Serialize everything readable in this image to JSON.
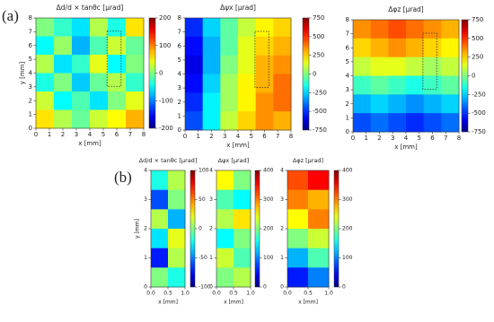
{
  "panel_labels": [
    "(a)",
    "(b)"
  ],
  "chart_data": [
    {
      "type": "heatmap",
      "title": "Δd/d × tanθc [μrad]",
      "xlabel": "x [mm]",
      "ylabel": "y [mm]",
      "colormap": "jet",
      "xlim": [
        0,
        8
      ],
      "ylim": [
        0,
        8
      ],
      "xticks": [
        0,
        1,
        2,
        3,
        4,
        5,
        6,
        7,
        8
      ],
      "yticks": [
        0,
        1,
        2,
        3,
        4,
        5,
        6,
        7,
        8
      ],
      "zlim": [
        -200,
        200
      ],
      "zticks": [
        200,
        100,
        0,
        -100,
        -200
      ],
      "z": [
        [
          0,
          -30,
          -60,
          20,
          -40,
          60
        ],
        [
          -50,
          10,
          -80,
          -20,
          30,
          -10
        ],
        [
          20,
          -60,
          -30,
          40,
          -50,
          0
        ],
        [
          -40,
          0,
          -70,
          -10,
          20,
          -30
        ],
        [
          30,
          -50,
          -20,
          -60,
          0,
          40
        ],
        [
          60,
          20,
          -10,
          30,
          50,
          80
        ]
      ]
    },
    {
      "type": "heatmap",
      "title": "Δψx [μrad]",
      "xlabel": "x [mm]",
      "colormap": "jet",
      "xlim": [
        0,
        8
      ],
      "ylim": [
        0,
        8
      ],
      "xticks": [
        0,
        1,
        2,
        3,
        4,
        5,
        6,
        7,
        8
      ],
      "yticks": [
        0,
        1,
        2,
        3,
        4,
        5,
        6,
        7,
        8
      ],
      "zlim": [
        -750,
        750
      ],
      "zticks": [
        750,
        500,
        250,
        0,
        -250,
        -500,
        -750
      ],
      "z": [
        [
          -500,
          -250,
          -50,
          100,
          200,
          250
        ],
        [
          -550,
          -300,
          -50,
          150,
          250,
          300
        ],
        [
          -600,
          -300,
          0,
          150,
          300,
          350
        ],
        [
          -550,
          -250,
          50,
          200,
          300,
          400
        ],
        [
          -500,
          -200,
          50,
          200,
          350,
          400
        ],
        [
          -450,
          -200,
          100,
          250,
          350,
          300
        ]
      ]
    },
    {
      "type": "heatmap",
      "title": "Δφz [μrad]",
      "xlabel": "x [mm]",
      "colormap": "jet",
      "xlim": [
        0,
        8
      ],
      "ylim": [
        0,
        8
      ],
      "xticks": [
        0,
        1,
        2,
        3,
        4,
        5,
        6,
        7,
        8
      ],
      "yticks": [
        0,
        1,
        2,
        3,
        4,
        5,
        6,
        7,
        8
      ],
      "zlim": [
        -750,
        750
      ],
      "zticks": [
        750,
        500,
        250,
        0,
        -250,
        -500,
        -750
      ],
      "z": [
        [
          350,
          400,
          450,
          400,
          350,
          300
        ],
        [
          250,
          300,
          350,
          300,
          250,
          200
        ],
        [
          100,
          150,
          150,
          100,
          50,
          100
        ],
        [
          -100,
          -50,
          -100,
          -150,
          -100,
          -50
        ],
        [
          -300,
          -250,
          -300,
          -350,
          -300,
          -250
        ],
        [
          -450,
          -400,
          -450,
          -500,
          -450,
          -400
        ]
      ]
    },
    {
      "type": "heatmap",
      "title": "Δd/d × tanθc [μrad]",
      "xlabel": "x [mm]",
      "ylabel": "y [mm]",
      "colormap": "jet",
      "xlim": [
        0,
        1
      ],
      "ylim": [
        0,
        4
      ],
      "xticks": [
        {
          "value": 0,
          "label": "0.0"
        },
        0.5,
        {
          "value": 1,
          "label": "1.0"
        }
      ],
      "yticks": [
        0,
        1,
        2,
        3,
        4
      ],
      "zlim": [
        -100,
        100
      ],
      "zticks": [
        100,
        50,
        0,
        -50,
        -100
      ],
      "z": [
        [
          -20,
          10
        ],
        [
          -60,
          0
        ],
        [
          10,
          -40
        ],
        [
          -30,
          20
        ],
        [
          -70,
          10
        ],
        [
          0,
          -20
        ]
      ]
    },
    {
      "type": "heatmap",
      "title": "Δψx [μrad]",
      "xlabel": "x [mm]",
      "colormap": "jet",
      "xlim": [
        0,
        1
      ],
      "ylim": [
        0,
        4
      ],
      "xticks": [
        {
          "value": 0,
          "label": "0.0"
        },
        0.5,
        {
          "value": 1,
          "label": "1.0"
        }
      ],
      "yticks": [
        0,
        1,
        2,
        3,
        4
      ],
      "zlim": [
        0,
        400
      ],
      "zticks": [
        400,
        300,
        200,
        100,
        0
      ],
      "z": [
        [
          250,
          200
        ],
        [
          180,
          150
        ],
        [
          220,
          260
        ],
        [
          150,
          200
        ],
        [
          230,
          180
        ],
        [
          200,
          220
        ]
      ]
    },
    {
      "type": "heatmap",
      "title": "Δφz [μrad]",
      "xlabel": "x [mm]",
      "colormap": "jet",
      "xlim": [
        0,
        1
      ],
      "ylim": [
        0,
        4
      ],
      "xticks": [
        {
          "value": 0,
          "label": "0.0"
        },
        0.5,
        {
          "value": 1,
          "label": "1.0"
        }
      ],
      "yticks": [
        0,
        1,
        2,
        3,
        4
      ],
      "zlim": [
        0,
        400
      ],
      "zticks": [
        400,
        300,
        200,
        100,
        0
      ],
      "z": [
        [
          320,
          350
        ],
        [
          300,
          280
        ],
        [
          250,
          300
        ],
        [
          200,
          230
        ],
        [
          120,
          180
        ],
        [
          60,
          100
        ]
      ]
    }
  ]
}
